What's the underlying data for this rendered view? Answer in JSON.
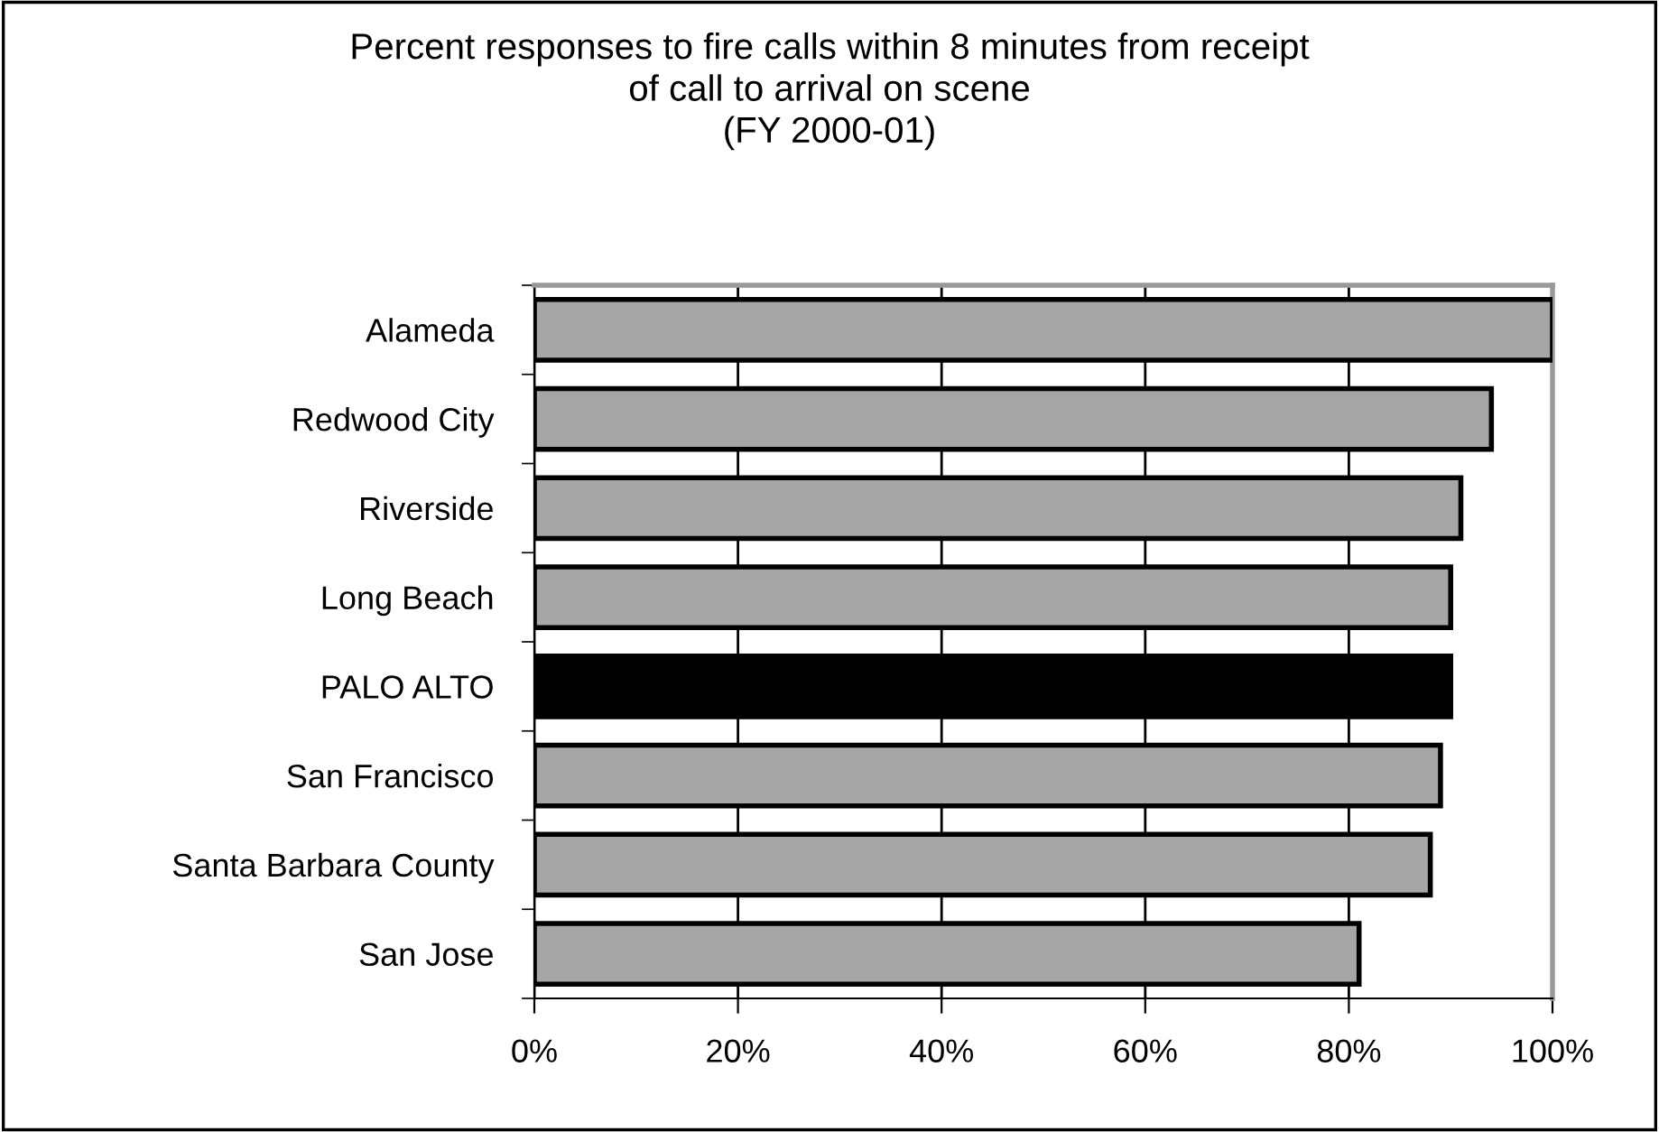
{
  "chart_data": {
    "type": "bar",
    "orientation": "horizontal",
    "title": "Percent responses to fire calls within 8 minutes from receipt\nof call to arrival on scene\n(FY 2000-01)",
    "categories": [
      "Alameda",
      "Redwood City",
      "Riverside",
      "Long Beach",
      "PALO ALTO",
      "San Francisco",
      "Santa Barbara County",
      "San Jose"
    ],
    "values": [
      100,
      94,
      91,
      90,
      90,
      89,
      88,
      81
    ],
    "colors": [
      "#a6a6a6",
      "#a6a6a6",
      "#a6a6a6",
      "#a6a6a6",
      "#000000",
      "#a6a6a6",
      "#a6a6a6",
      "#a6a6a6"
    ],
    "xlim": [
      0,
      100
    ],
    "xticks": [
      {
        "value": 0,
        "label": "0%"
      },
      {
        "value": 20,
        "label": "20%"
      },
      {
        "value": 40,
        "label": "40%"
      },
      {
        "value": 60,
        "label": "60%"
      },
      {
        "value": 80,
        "label": "80%"
      },
      {
        "value": 100,
        "label": "100%"
      }
    ],
    "grid": "x",
    "legend": false
  }
}
